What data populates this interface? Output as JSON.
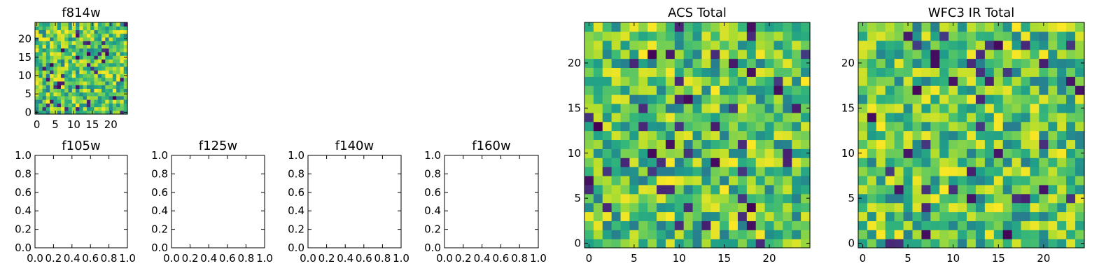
{
  "chart_data": [
    {
      "type": "heatmap",
      "title": "f814w",
      "grid_size": 25,
      "colormap": "viridis",
      "xlim": [
        -0.5,
        24.5
      ],
      "ylim": [
        -0.5,
        24.5
      ],
      "xticks": [
        0,
        5,
        10,
        15,
        20
      ],
      "xtick_labels": [
        "0",
        "5",
        "10",
        "15",
        "20"
      ],
      "yticks": [
        0,
        5,
        10,
        15,
        20
      ],
      "ytick_labels": [
        "0",
        "5",
        "10",
        "15",
        "20"
      ],
      "seed": 11
    },
    {
      "type": "heatmap",
      "title": "f105w",
      "empty": true,
      "xlim": [
        0,
        1
      ],
      "ylim": [
        0,
        1
      ],
      "xticks": [
        0,
        0.2,
        0.4,
        0.6,
        0.8,
        1.0
      ],
      "xtick_labels": [
        "0.0",
        "0.2",
        "0.4",
        "0.6",
        "0.8",
        "1.0"
      ],
      "yticks": [
        0,
        0.2,
        0.4,
        0.6,
        0.8,
        1.0
      ],
      "ytick_labels": [
        "0.0",
        "0.2",
        "0.4",
        "0.6",
        "0.8",
        "1.0"
      ]
    },
    {
      "type": "heatmap",
      "title": "f125w",
      "empty": true,
      "xlim": [
        0,
        1
      ],
      "ylim": [
        0,
        1
      ],
      "xticks": [
        0,
        0.2,
        0.4,
        0.6,
        0.8,
        1.0
      ],
      "xtick_labels": [
        "0.0",
        "0.2",
        "0.4",
        "0.6",
        "0.8",
        "1.0"
      ],
      "yticks": [
        0,
        0.2,
        0.4,
        0.6,
        0.8,
        1.0
      ],
      "ytick_labels": [
        "0.0",
        "0.2",
        "0.4",
        "0.6",
        "0.8",
        "1.0"
      ]
    },
    {
      "type": "heatmap",
      "title": "f140w",
      "empty": true,
      "xlim": [
        0,
        1
      ],
      "ylim": [
        0,
        1
      ],
      "xticks": [
        0,
        0.2,
        0.4,
        0.6,
        0.8,
        1.0
      ],
      "xtick_labels": [
        "0.0",
        "0.2",
        "0.4",
        "0.6",
        "0.8",
        "1.0"
      ],
      "yticks": [
        0,
        0.2,
        0.4,
        0.6,
        0.8,
        1.0
      ],
      "ytick_labels": [
        "0.0",
        "0.2",
        "0.4",
        "0.6",
        "0.8",
        "1.0"
      ]
    },
    {
      "type": "heatmap",
      "title": "f160w",
      "empty": true,
      "xlim": [
        0,
        1
      ],
      "ylim": [
        0,
        1
      ],
      "xticks": [
        0,
        0.2,
        0.4,
        0.6,
        0.8,
        1.0
      ],
      "xtick_labels": [
        "0.0",
        "0.2",
        "0.4",
        "0.6",
        "0.8",
        "1.0"
      ],
      "yticks": [
        0,
        0.2,
        0.4,
        0.6,
        0.8,
        1.0
      ],
      "ytick_labels": [
        "0.0",
        "0.2",
        "0.4",
        "0.6",
        "0.8",
        "1.0"
      ]
    },
    {
      "type": "heatmap",
      "title": "ACS Total",
      "grid_size": 25,
      "colormap": "viridis",
      "xlim": [
        -0.5,
        24.5
      ],
      "ylim": [
        -0.5,
        24.5
      ],
      "xticks": [
        0,
        5,
        10,
        15,
        20
      ],
      "xtick_labels": [
        "0",
        "5",
        "10",
        "15",
        "20"
      ],
      "yticks": [
        0,
        5,
        10,
        15,
        20
      ],
      "ytick_labels": [
        "0",
        "5",
        "10",
        "15",
        "20"
      ],
      "seed": 23
    },
    {
      "type": "heatmap",
      "title": "WFC3 IR Total",
      "grid_size": 25,
      "colormap": "viridis",
      "xlim": [
        -0.5,
        24.5
      ],
      "ylim": [
        -0.5,
        24.5
      ],
      "xticks": [
        0,
        5,
        10,
        15,
        20
      ],
      "xtick_labels": [
        "0",
        "5",
        "10",
        "15",
        "20"
      ],
      "yticks": [
        0,
        5,
        10,
        15,
        20
      ],
      "ytick_labels": [
        "0",
        "5",
        "10",
        "15",
        "20"
      ],
      "seed": 37
    }
  ]
}
